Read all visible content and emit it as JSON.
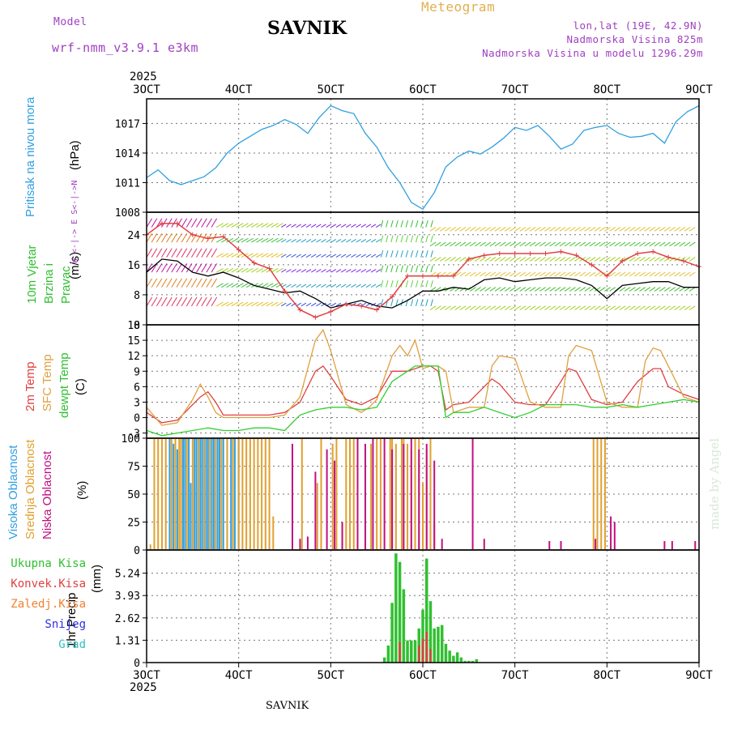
{
  "header": {
    "model_label": "Model",
    "model_name": "wrf-nmm_v3.9.1 e3km",
    "station": "SAVNIK",
    "meteogram_label": "Meteogram",
    "coords": "lon,lat (19E, 42.9N)",
    "altitude": "Nadmorska Visina 825m",
    "model_altitude": "Nadmorska Visina u modelu 1296.29m"
  },
  "footer": {
    "station": "SAVNIK",
    "watermark": "made by Angel"
  },
  "axis": {
    "year": "2025",
    "dates": [
      "3OCT",
      "4OCT",
      "5OCT",
      "6OCT",
      "7OCT",
      "8OCT",
      "9OCT"
    ]
  },
  "colors": {
    "pressure": "#30a0e0",
    "t2m": "#e04040",
    "sfc": "#e0a040",
    "dew": "#30d030",
    "high_cloud": "#30a0e0",
    "mid_cloud": "#e0a030",
    "low_cloud": "#c01080",
    "total_precip": "#30c030",
    "conv_precip": "#e04040",
    "snow": "#3030e0",
    "hail": "#30c0c0",
    "ice": "#f08030",
    "gust": "#e04040",
    "wind_mean": "#000000"
  },
  "chart_data": [
    {
      "id": "pressure",
      "type": "line",
      "title": "Pritisak na nivou mora",
      "ylabel": "(hPa)",
      "ylim": [
        1008,
        1019.5
      ],
      "yticks": [
        1008,
        1011,
        1014,
        1017
      ],
      "x_unit": "hours since 3OCT 00UTC",
      "series": [
        {
          "name": "MSLP",
          "color_key": "pressure",
          "x": [
            0,
            3,
            6,
            9,
            12,
            15,
            18,
            21,
            24,
            27,
            30,
            33,
            36,
            39,
            42,
            45,
            48,
            51,
            54,
            57,
            60,
            63,
            66,
            69,
            72,
            75,
            78,
            81,
            84,
            87,
            90,
            93,
            96,
            99,
            102,
            105,
            108,
            111,
            114,
            117,
            120,
            123,
            126,
            129,
            132,
            135,
            138,
            141,
            144
          ],
          "values": [
            1011.5,
            1012.3,
            1011.2,
            1010.8,
            1011.2,
            1011.6,
            1012.5,
            1014.0,
            1015.0,
            1015.7,
            1016.4,
            1016.8,
            1017.4,
            1016.9,
            1016.0,
            1017.6,
            1018.8,
            1018.3,
            1018.0,
            1016.0,
            1014.6,
            1012.5,
            1011.0,
            1009.0,
            1008.3,
            1010.0,
            1012.6,
            1013.6,
            1014.2,
            1013.9,
            1014.6,
            1015.5,
            1016.6,
            1016.3,
            1016.8,
            1015.7,
            1014.4,
            1014.9,
            1016.3,
            1016.6,
            1016.8,
            1016.0,
            1015.6,
            1015.7,
            1016.0,
            1015.0,
            1017.2,
            1018.2,
            1018.8
          ]
        }
      ]
    },
    {
      "id": "wind",
      "type": "line",
      "title": "10m Vjetar Brzina i Pravac",
      "ylabel": "(m/s)",
      "ylim": [
        0,
        30
      ],
      "yticks": [
        0,
        8,
        16,
        24
      ],
      "side_legend": "W <-|-> E  S<-|->N",
      "barb_rows": [
        2,
        5,
        10,
        14,
        18,
        22,
        26
      ],
      "series": [
        {
          "name": "10m wind speed",
          "color_key": "wind_mean",
          "x": [
            0,
            4,
            8,
            12,
            16,
            20,
            24,
            28,
            32,
            36,
            40,
            44,
            48,
            52,
            56,
            60,
            64,
            68,
            72,
            76,
            80,
            84,
            88,
            92,
            96,
            100,
            104,
            108,
            112,
            116,
            120,
            124,
            128,
            132,
            136,
            140,
            144
          ],
          "values": [
            14,
            17.5,
            17,
            14,
            13,
            14,
            12.5,
            10.5,
            9.5,
            8.5,
            9,
            7,
            4.5,
            5.5,
            6.5,
            5,
            4.5,
            6.5,
            9,
            9,
            10,
            9.5,
            12,
            12.5,
            11.5,
            12,
            12.5,
            12.5,
            12,
            10.5,
            7,
            10.5,
            11,
            11.5,
            11.5,
            10,
            10
          ]
        },
        {
          "name": "10m wind gust",
          "color_key": "gust",
          "x": [
            0,
            4,
            8,
            12,
            16,
            20,
            24,
            28,
            32,
            36,
            40,
            44,
            48,
            52,
            56,
            60,
            64,
            68,
            72,
            76,
            80,
            84,
            88,
            92,
            96,
            100,
            104,
            108,
            112,
            116,
            120,
            124,
            128,
            132,
            136,
            140,
            144
          ],
          "values": [
            24,
            27,
            27,
            24,
            23,
            23.5,
            20,
            16.5,
            15,
            9,
            4,
            2,
            3.5,
            5.5,
            5,
            4,
            7.5,
            13,
            13,
            13,
            13,
            17.5,
            18.5,
            19,
            19,
            19,
            19,
            19.5,
            18.5,
            16,
            13,
            17,
            19,
            19.5,
            18,
            17,
            15.5
          ]
        }
      ]
    },
    {
      "id": "temperature",
      "type": "line",
      "title": "2m Temp / SFC Temp / dewpt Temp",
      "ylabel": "(C)",
      "ylim": [
        -4,
        18
      ],
      "yticks": [
        -3,
        0,
        3,
        6,
        9,
        12,
        15,
        18
      ],
      "series": [
        {
          "name": "2m Temp",
          "color_key": "t2m",
          "x": [
            0,
            4,
            8,
            12,
            14,
            16,
            18,
            20,
            24,
            28,
            32,
            36,
            40,
            44,
            46,
            48,
            52,
            56,
            60,
            64,
            68,
            72,
            74,
            76,
            78,
            80,
            84,
            88,
            90,
            92,
            96,
            100,
            104,
            108,
            110,
            112,
            116,
            120,
            124,
            128,
            132,
            134,
            136,
            140,
            144
          ],
          "values": [
            1,
            -1,
            -0.5,
            2.5,
            4,
            5,
            3,
            0.5,
            0.5,
            0.5,
            0.5,
            1,
            3,
            9,
            10,
            8,
            3.5,
            2.5,
            4,
            9,
            9,
            10,
            10,
            9,
            1.5,
            2.5,
            3,
            6,
            7.5,
            6.5,
            3,
            2.5,
            2.5,
            7,
            9.5,
            9,
            3.5,
            2.5,
            3,
            7,
            9.5,
            9.5,
            6,
            4.5,
            3.5
          ]
        },
        {
          "name": "SFC Temp",
          "color_key": "sfc",
          "x": [
            0,
            4,
            8,
            12,
            14,
            16,
            18,
            20,
            24,
            28,
            32,
            36,
            40,
            44,
            46,
            48,
            52,
            56,
            58,
            60,
            64,
            66,
            68,
            70,
            72,
            74,
            76,
            78,
            80,
            84,
            88,
            90,
            92,
            96,
            100,
            104,
            108,
            110,
            112,
            116,
            120,
            124,
            128,
            130,
            132,
            134,
            136,
            140,
            144
          ],
          "values": [
            2,
            -1.5,
            -1,
            3.5,
            6.5,
            4,
            1,
            0,
            0,
            0,
            0,
            0.5,
            4,
            15,
            17,
            13,
            2.5,
            1,
            2,
            3.5,
            12,
            14,
            12,
            15,
            9.5,
            10,
            10,
            9,
            1,
            2,
            2,
            10,
            12,
            11.5,
            3,
            2,
            2,
            12,
            14,
            13,
            3,
            2,
            2,
            11,
            13.5,
            13,
            10,
            4,
            3
          ]
        },
        {
          "name": "dewpt Temp",
          "color_key": "dew",
          "x": [
            0,
            4,
            8,
            12,
            16,
            20,
            24,
            28,
            32,
            36,
            40,
            44,
            48,
            52,
            56,
            60,
            64,
            68,
            70,
            72,
            74,
            76,
            78,
            80,
            84,
            88,
            92,
            96,
            100,
            104,
            108,
            112,
            116,
            120,
            124,
            128,
            132,
            136,
            140,
            144
          ],
          "values": [
            -2.5,
            -3.5,
            -3,
            -2.5,
            -2,
            -2.5,
            -2.5,
            -2,
            -2,
            -2.5,
            0.5,
            1.5,
            2,
            2,
            1.5,
            2,
            7,
            9,
            10,
            10,
            10,
            10,
            0,
            1,
            1,
            2,
            1,
            0,
            1,
            2.5,
            2.5,
            2.5,
            2,
            2,
            2.5,
            2,
            2.5,
            3,
            3.5,
            3
          ]
        }
      ]
    },
    {
      "id": "clouds",
      "type": "bar",
      "title": "Visoka Oblacnost / Srednja Oblacnost / Niska Oblacnost",
      "ylabel": "(%)",
      "ylim": [
        0,
        100
      ],
      "yticks": [
        0,
        25,
        50,
        75,
        100
      ],
      "series": [
        {
          "name": "Visoka Oblacnost",
          "color_key": "high_cloud",
          "x": [
            6,
            7,
            8,
            9.5,
            10,
            11,
            11.5,
            12.5,
            13,
            14,
            14.5,
            15.5,
            16,
            17,
            17.5,
            18.5,
            19,
            20,
            21,
            22,
            23,
            24
          ],
          "values": [
            100,
            95,
            90,
            100,
            100,
            100,
            60,
            100,
            100,
            100,
            100,
            100,
            100,
            100,
            100,
            100,
            100,
            100,
            100,
            100,
            100,
            100
          ]
        },
        {
          "name": "Srednja Oblacnost",
          "color_key": "mid_cloud",
          "x": [
            1,
            2,
            3,
            4,
            5,
            6.5,
            7.5,
            8.5,
            9,
            10.5,
            12,
            13.5,
            15,
            16.5,
            18,
            19.5,
            21,
            22.5,
            24,
            25,
            26,
            27,
            28,
            29,
            30,
            31,
            32,
            33,
            40.5,
            44.5,
            45.5,
            48.5,
            49.5,
            51,
            52,
            53,
            54,
            58.5,
            60,
            61,
            63.5,
            64,
            65,
            66.5,
            67,
            68,
            69,
            70,
            71,
            72,
            73,
            74,
            75,
            116.5,
            117.5,
            118.5,
            119.5
          ],
          "values": [
            5,
            100,
            100,
            100,
            100,
            100,
            100,
            100,
            100,
            100,
            100,
            100,
            100,
            100,
            100,
            100,
            100,
            100,
            100,
            100,
            100,
            100,
            100,
            100,
            100,
            100,
            100,
            30,
            100,
            60,
            100,
            95,
            100,
            25,
            100,
            100,
            100,
            95,
            100,
            100,
            100,
            100,
            95,
            100,
            100,
            95,
            90,
            100,
            100,
            60,
            90,
            100,
            25,
            100,
            100,
            100,
            100
          ]
        },
        {
          "name": "Niska Oblacnost",
          "color_key": "low_cloud",
          "x": [
            38,
            40,
            42,
            44,
            47,
            49,
            51,
            55,
            57,
            59,
            62,
            64,
            67,
            69,
            71,
            73,
            75,
            77,
            85,
            88,
            105,
            108,
            117,
            121,
            122,
            135,
            137,
            143
          ],
          "values": [
            95,
            10,
            12,
            70,
            90,
            80,
            25,
            100,
            95,
            100,
            100,
            90,
            95,
            100,
            90,
            95,
            80,
            10,
            100,
            10,
            8,
            8,
            10,
            30,
            25,
            8,
            8,
            8
          ]
        }
      ]
    },
    {
      "id": "precip",
      "type": "bar",
      "title": "1hr Precip",
      "ylabel": "(mm)",
      "ylim": [
        0,
        6.6
      ],
      "yticks": [
        0,
        1.31,
        2.62,
        3.93,
        5.24
      ],
      "legend": [
        "Ukupna Kisa",
        "Konvek.Kisa",
        "Zaledj.Kisa",
        "Snijeg",
        "Grad"
      ],
      "series": [
        {
          "name": "Ukupna Kisa",
          "color_key": "total_precip",
          "x": [
            62,
            63,
            64,
            65,
            66,
            67,
            68,
            69,
            70,
            71,
            72,
            73,
            74,
            75,
            76,
            77,
            78,
            79,
            80,
            81,
            82,
            83,
            84,
            85,
            86
          ],
          "values": [
            0.3,
            1.0,
            3.5,
            6.4,
            5.9,
            4.3,
            1.3,
            1.3,
            1.3,
            2.0,
            3.1,
            6.1,
            3.6,
            2.0,
            2.1,
            2.2,
            1.1,
            0.7,
            0.4,
            0.6,
            0.3,
            0.1,
            0.1,
            0.1,
            0.2
          ]
        },
        {
          "name": "Konvek.Kisa",
          "color_key": "conv_precip",
          "x": [
            66,
            71,
            72,
            73,
            74
          ],
          "values": [
            1.2,
            1.0,
            1.4,
            1.8,
            0.8
          ]
        }
      ]
    }
  ]
}
